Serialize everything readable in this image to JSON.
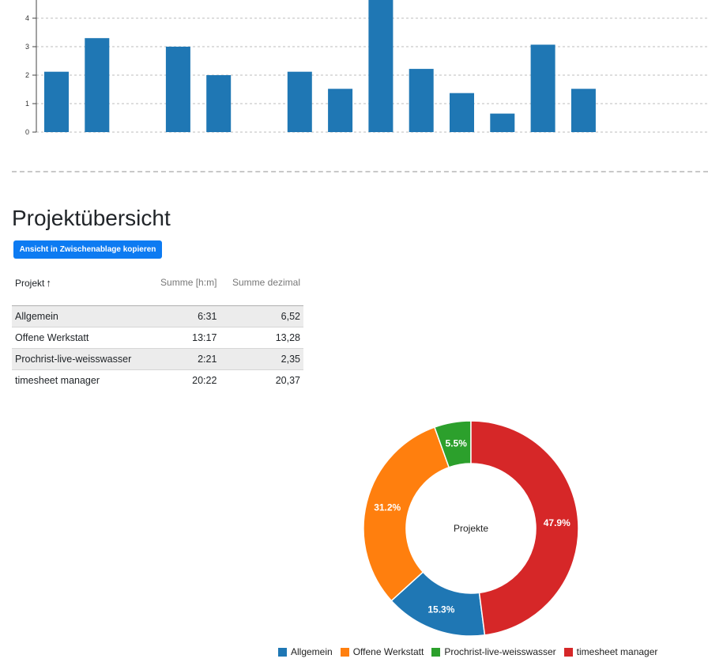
{
  "chart_data": [
    {
      "type": "bar",
      "y_ticks": [
        "0",
        "1",
        "2",
        "3",
        "4"
      ],
      "ylim": [
        0,
        4.65
      ],
      "grid": true,
      "values": [
        2.12,
        3.3,
        null,
        3.0,
        2.0,
        null,
        2.12,
        1.52,
        4.7,
        2.22,
        1.37,
        0.65,
        3.07,
        1.52
      ],
      "color": "#1f77b4"
    },
    {
      "type": "pie",
      "donut": true,
      "center_label": "Projekte",
      "slices": [
        {
          "label": "Allgemein",
          "value": 15.3,
          "display": "15.3%",
          "color": "#1f77b4"
        },
        {
          "label": "Offene Werkstatt",
          "value": 31.2,
          "display": "31.2%",
          "color": "#ff7f0e"
        },
        {
          "label": "Prochrist-live-weisswasser",
          "value": 5.5,
          "display": "5.5%",
          "color": "#2ca02c"
        },
        {
          "label": "timesheet manager",
          "value": 47.9,
          "display": "47.9%",
          "color": "#d62728"
        }
      ],
      "legend_position": "bottom"
    }
  ],
  "overview": {
    "title": "Projektübersicht",
    "copy_button": "Ansicht in Zwischenablage kopieren",
    "columns": {
      "project": "Projekt",
      "sum_hm": "Summe [h:m]",
      "sum_dec": "Summe dezimal"
    },
    "sort_icon": "arrow-up-icon",
    "rows": [
      {
        "project": "Allgemein",
        "hm": "6:31",
        "dec": "6,52"
      },
      {
        "project": "Offene Werkstatt",
        "hm": "13:17",
        "dec": "13,28"
      },
      {
        "project": "Prochrist-live-weisswasser",
        "hm": "2:21",
        "dec": "2,35"
      },
      {
        "project": "timesheet manager",
        "hm": "20:22",
        "dec": "20,37"
      }
    ]
  }
}
